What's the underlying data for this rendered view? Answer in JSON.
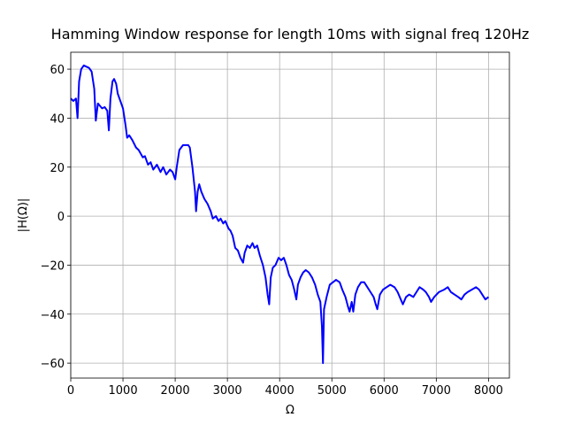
{
  "chart_data": {
    "type": "line",
    "title": "Hamming Window response for length 10ms with signal freq 120Hz",
    "x_label": "Ω",
    "y_label": "|H(Ω)|",
    "color": "#0000ff",
    "grid": true,
    "xlim": [
      0,
      8400
    ],
    "ylim": [
      -66.1,
      66.9
    ],
    "xticks": [
      0,
      1000,
      2000,
      3000,
      4000,
      5000,
      6000,
      7000,
      8000
    ],
    "yticks": [
      {
        "value": -60,
        "label": "−60"
      },
      {
        "value": -40,
        "label": "−40"
      },
      {
        "value": -20,
        "label": "−20"
      },
      0,
      20,
      40,
      60
    ],
    "x": [
      0,
      50,
      100,
      130,
      160,
      200,
      250,
      300,
      350,
      400,
      450,
      480,
      520,
      560,
      600,
      650,
      700,
      730,
      760,
      800,
      830,
      870,
      900,
      950,
      1000,
      1050,
      1080,
      1120,
      1180,
      1250,
      1300,
      1380,
      1420,
      1480,
      1530,
      1580,
      1650,
      1720,
      1770,
      1830,
      1900,
      1950,
      2000,
      2030,
      2080,
      2150,
      2250,
      2280,
      2330,
      2380,
      2400,
      2430,
      2460,
      2500,
      2560,
      2620,
      2680,
      2720,
      2780,
      2830,
      2870,
      2920,
      2960,
      3020,
      3060,
      3100,
      3150,
      3200,
      3250,
      3300,
      3330,
      3380,
      3430,
      3480,
      3520,
      3570,
      3620,
      3680,
      3730,
      3770,
      3800,
      3830,
      3870,
      3920,
      3980,
      4030,
      4080,
      4130,
      4180,
      4230,
      4280,
      4320,
      4350,
      4400,
      4450,
      4500,
      4560,
      4620,
      4680,
      4730,
      4780,
      4810,
      4830,
      4850,
      4900,
      4960,
      5020,
      5080,
      5150,
      5200,
      5260,
      5310,
      5340,
      5380,
      5410,
      5450,
      5500,
      5560,
      5620,
      5680,
      5740,
      5800,
      5840,
      5870,
      5920,
      5980,
      6050,
      6120,
      6200,
      6260,
      6320,
      6360,
      6420,
      6480,
      6560,
      6620,
      6680,
      6750,
      6800,
      6860,
      6900,
      6960,
      7050,
      7150,
      7220,
      7280,
      7350,
      7420,
      7480,
      7540,
      7600,
      7680,
      7760,
      7820,
      7880,
      7940,
      8000
    ],
    "values": [
      48,
      47,
      48,
      40,
      55,
      60,
      61.5,
      61,
      60.5,
      59,
      52,
      39,
      46,
      45,
      44,
      44.5,
      43,
      35,
      48,
      55,
      56,
      54,
      50,
      47,
      44,
      37,
      32,
      33,
      31,
      28,
      27,
      24,
      24.5,
      21,
      22,
      19,
      21,
      18,
      20,
      17,
      19,
      18,
      15,
      20,
      27,
      29,
      29,
      28,
      20,
      10,
      2,
      10,
      13,
      10,
      7,
      5,
      2,
      -1,
      0,
      -2,
      -1,
      -3,
      -2,
      -5,
      -6,
      -8,
      -13,
      -14,
      -17,
      -19,
      -15,
      -12,
      -13,
      -11,
      -13,
      -12,
      -16,
      -20,
      -25,
      -32,
      -36,
      -25,
      -21,
      -20,
      -17,
      -18,
      -17,
      -20,
      -24,
      -26,
      -30,
      -34,
      -28,
      -25,
      -23,
      -22,
      -23,
      -25,
      -28,
      -32,
      -35,
      -45,
      -60,
      -38,
      -33,
      -28,
      -27,
      -26,
      -27,
      -30,
      -33,
      -37,
      -39,
      -35,
      -39,
      -32,
      -29,
      -27,
      -27,
      -29,
      -31,
      -33,
      -36,
      -38,
      -32,
      -30,
      -29,
      -28,
      -29,
      -31,
      -34,
      -36,
      -33,
      -32,
      -33,
      -31,
      -29,
      -30,
      -31,
      -33,
      -35,
      -33,
      -31,
      -30,
      -29,
      -31,
      -32,
      -33,
      -34,
      -32,
      -31,
      -30,
      -29,
      -30,
      -32,
      -34,
      -33
    ]
  }
}
